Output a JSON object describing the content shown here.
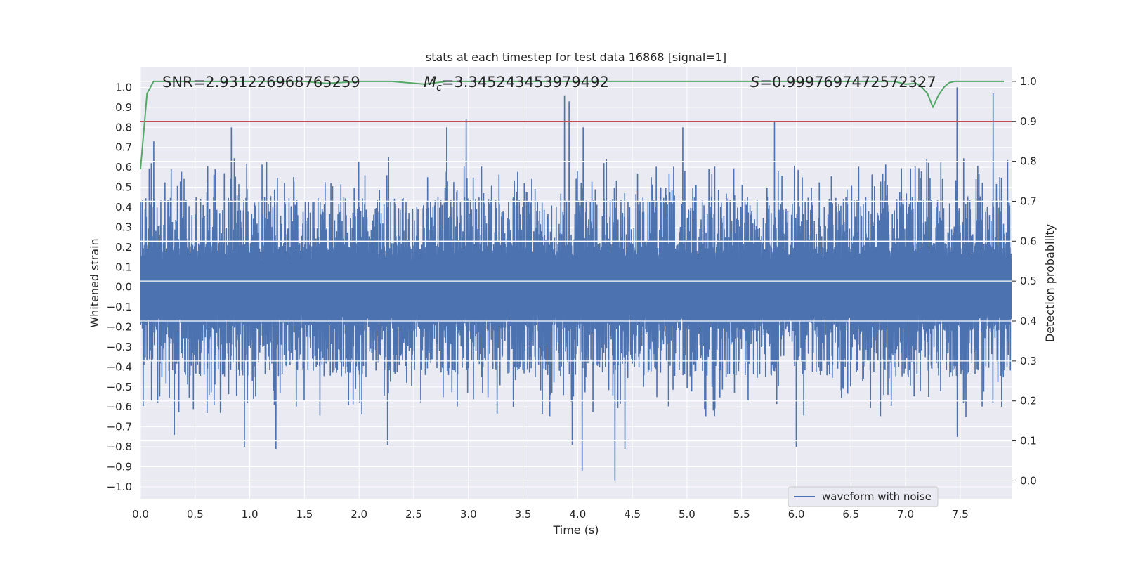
{
  "chart_data": {
    "type": "line",
    "title": "stats at each timestep for test data 16868 [signal=1]",
    "xlabel": "Time (s)",
    "ylabel": "Whitened strain",
    "y2label": "Detection probability",
    "xlim": [
      0.0,
      7.97
    ],
    "ylim": [
      -1.06,
      1.1
    ],
    "y2lim": [
      -0.045,
      1.035
    ],
    "xticks": [
      0.0,
      0.5,
      1.0,
      1.5,
      2.0,
      2.5,
      3.0,
      3.5,
      4.0,
      4.5,
      5.0,
      5.5,
      6.0,
      6.5,
      7.0,
      7.5
    ],
    "xtick_labels": [
      "0.0",
      "0.5",
      "1.0",
      "1.5",
      "2.0",
      "2.5",
      "3.0",
      "3.5",
      "4.0",
      "4.5",
      "5.0",
      "5.5",
      "6.0",
      "6.5",
      "7.0",
      "7.5"
    ],
    "yticks": [
      -1.0,
      -0.9,
      -0.8,
      -0.7,
      -0.6,
      -0.5,
      -0.4,
      -0.3,
      -0.2,
      -0.1,
      0.0,
      0.1,
      0.2,
      0.3,
      0.4,
      0.5,
      0.6,
      0.7,
      0.8,
      0.9,
      1.0
    ],
    "ytick_labels": [
      "−1.0",
      "−0.9",
      "−0.8",
      "−0.7",
      "−0.6",
      "−0.5",
      "−0.4",
      "−0.3",
      "−0.2",
      "−0.1",
      "0.0",
      "0.1",
      "0.2",
      "0.3",
      "0.4",
      "0.5",
      "0.6",
      "0.7",
      "0.8",
      "0.9",
      "1.0"
    ],
    "y2ticks": [
      0.0,
      0.1,
      0.2,
      0.3,
      0.4,
      0.5,
      0.6,
      0.7,
      0.8,
      0.9,
      1.0
    ],
    "y2tick_labels": [
      "0.0",
      "0.1",
      "0.2",
      "0.3",
      "0.4",
      "0.5",
      "0.6",
      "0.7",
      "0.8",
      "0.9",
      "1.0"
    ],
    "grid": true,
    "annotations": {
      "snr": "SNR=2.931226968765259",
      "mc_symbol": "M",
      "mc_sub": "c",
      "mc_value": "=3.345243453979492",
      "s_symbol": "S",
      "s_value": "=0.9997697472572327"
    },
    "threshold": {
      "axis": "right",
      "value": 0.9,
      "color": "#c44e52"
    },
    "series": [
      {
        "name": "waveform with noise",
        "axis": "left",
        "color": "#4c72b0",
        "style": "dense-oscillation",
        "typical_envelope": 0.4,
        "core_band": 0.22,
        "time_range": [
          0.0,
          7.97
        ],
        "peaks": [
          {
            "t": 0.12,
            "v": 0.73
          },
          {
            "t": 0.83,
            "v": 0.8
          },
          {
            "t": 2.8,
            "v": 0.8
          },
          {
            "t": 2.98,
            "v": 0.84
          },
          {
            "t": 3.88,
            "v": 0.96
          },
          {
            "t": 3.92,
            "v": 0.93
          },
          {
            "t": 4.05,
            "v": 0.8
          },
          {
            "t": 4.96,
            "v": 0.8
          },
          {
            "t": 5.8,
            "v": 0.83
          },
          {
            "t": 7.47,
            "v": 1.0
          },
          {
            "t": 7.8,
            "v": 0.97
          }
        ],
        "troughs": [
          {
            "t": 0.31,
            "v": -0.74
          },
          {
            "t": 0.95,
            "v": -0.8
          },
          {
            "t": 1.24,
            "v": -0.81
          },
          {
            "t": 2.26,
            "v": -0.79
          },
          {
            "t": 3.95,
            "v": -0.79
          },
          {
            "t": 4.04,
            "v": -0.92
          },
          {
            "t": 4.34,
            "v": -0.97
          },
          {
            "t": 4.43,
            "v": -0.81
          },
          {
            "t": 6.0,
            "v": -0.8
          },
          {
            "t": 7.47,
            "v": -0.75
          }
        ]
      },
      {
        "name": "detection probability",
        "axis": "right",
        "color": "#55a868",
        "x": [
          0.0,
          0.06,
          0.12,
          0.5,
          1.0,
          1.5,
          1.7,
          2.0,
          2.3,
          2.6,
          2.8,
          3.0,
          4.0,
          5.0,
          6.0,
          6.9,
          7.0,
          7.1,
          7.15,
          7.2,
          7.25,
          7.3,
          7.35,
          7.4,
          7.45,
          7.5,
          7.7,
          7.9
        ],
        "y": [
          0.78,
          0.97,
          1.0,
          1.0,
          1.0,
          1.0,
          0.995,
          1.0,
          1.0,
          0.993,
          1.0,
          1.0,
          1.0,
          1.0,
          1.0,
          1.0,
          0.993,
          0.995,
          0.985,
          0.97,
          0.935,
          0.965,
          0.985,
          0.997,
          1.0,
          1.0,
          1.0,
          1.0
        ]
      }
    ],
    "legend": {
      "position": "lower-right",
      "entries": [
        "waveform with noise"
      ]
    }
  }
}
